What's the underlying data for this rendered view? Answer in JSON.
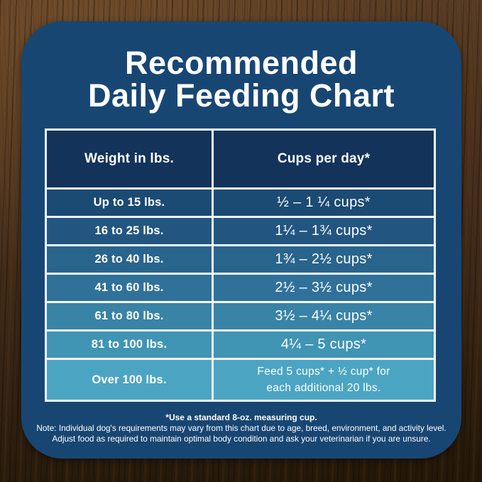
{
  "card": {
    "background": "#184673",
    "title_line1": "Recommended",
    "title_line2": "Daily Feeding Chart",
    "title_color": "#ffffff",
    "border_color": "#f5f8fa"
  },
  "table": {
    "header": {
      "weight": "Weight in lbs.",
      "cups": "Cups per day*",
      "color": "#13335a"
    },
    "rows": [
      {
        "weight": "Up to 15 lbs.",
        "cups": "½ – 1 ¼ cups*",
        "color": "#1b4a72"
      },
      {
        "weight": "16 to 25 lbs.",
        "cups": "1¼ – 1¾ cups*",
        "color": "#225680"
      },
      {
        "weight": "26 to 40 lbs.",
        "cups": "1¾ – 2½ cups*",
        "color": "#29648c"
      },
      {
        "weight": "41 to 60 lbs.",
        "cups": "2½ – 3½ cups*",
        "color": "#30719a"
      },
      {
        "weight": "61 to 80 lbs.",
        "cups": "3½ – 4¼ cups*",
        "color": "#3883a6"
      },
      {
        "weight": "81 to 100 lbs.",
        "cups": "4¼ – 5 cups*",
        "color": "#4094b4"
      },
      {
        "weight": "Over 100 lbs.",
        "cups": "Feed 5 cups* + ½ cup* for\neach additional 20 lbs.",
        "color": "#4ba5c2"
      }
    ]
  },
  "footer": {
    "measuring_note": "*Use a standard 8-oz. measuring cup.",
    "note_line1": "Note: Individual dog's requirements may vary from this chart due to age, breed, environment, and activity level.",
    "note_line2": "Adjust food as required to maintain optimal body condition and ask your veterinarian if you are unsure."
  },
  "chart_data": {
    "type": "table",
    "title": "Recommended Daily Feeding Chart",
    "columns": [
      "Weight in lbs.",
      "Cups per day*"
    ],
    "rows": [
      [
        "Up to 15 lbs.",
        "½ – 1 ¼ cups*"
      ],
      [
        "16 to 25 lbs.",
        "1¼ – 1¾ cups*"
      ],
      [
        "26 to 40 lbs.",
        "1¾ – 2½ cups*"
      ],
      [
        "41 to 60 lbs.",
        "2½ – 3½ cups*"
      ],
      [
        "61 to 80 lbs.",
        "3½ – 4¼ cups*"
      ],
      [
        "81 to 100 lbs.",
        "4¼ – 5 cups*"
      ],
      [
        "Over 100 lbs.",
        "Feed 5 cups* + ½ cup* for each additional 20 lbs."
      ]
    ],
    "footnote": "*Use a standard 8-oz. measuring cup.",
    "layout": {
      "row_color_range": [
        "#1b4a72",
        "#4ba5c2"
      ],
      "header_color": "#13335a",
      "grid": "white 3px borders"
    }
  }
}
